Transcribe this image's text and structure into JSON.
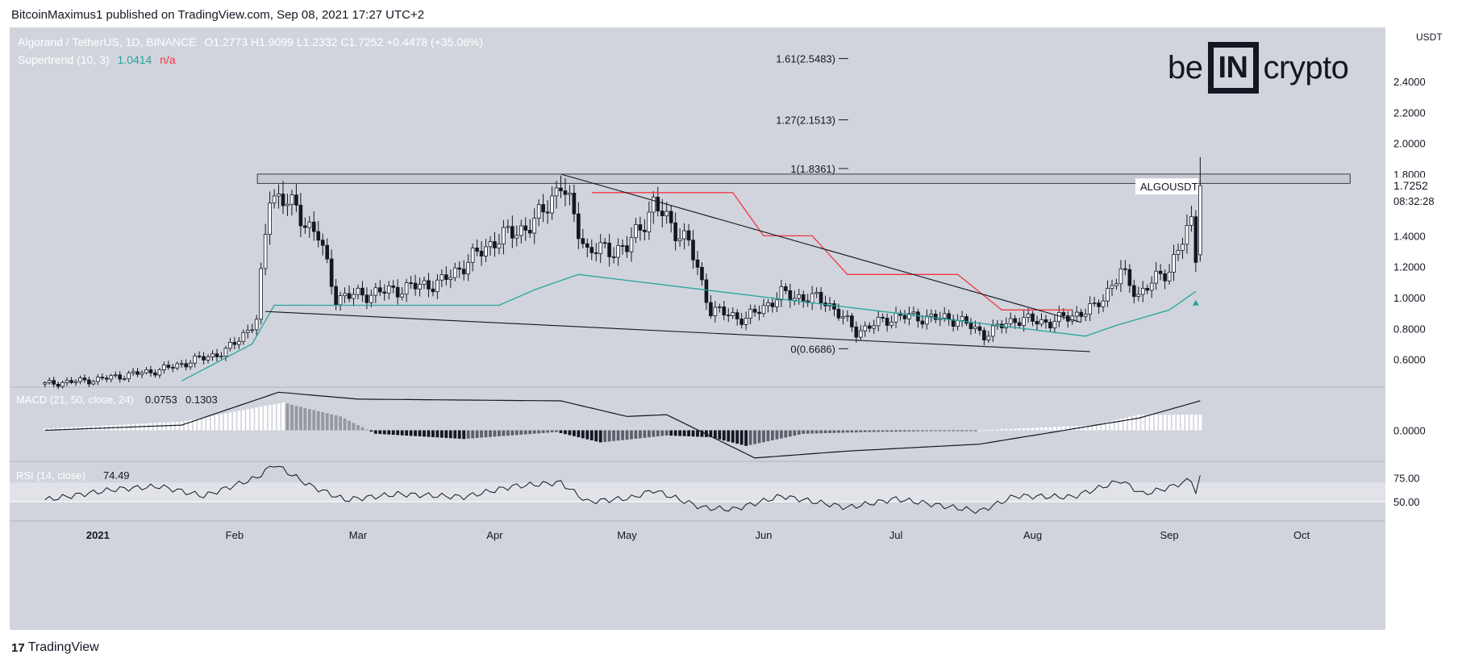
{
  "header": {
    "publisher": "BitcoinMaximus1 published on TradingView.com, Sep 08, 2021 17:27 UTC+2"
  },
  "brand": {
    "left": "be",
    "box": "IN",
    "right": "crypto"
  },
  "legend": {
    "symbol_line": "Algorand / TetherUS, 1D, BINANCE",
    "ohlc": "O1.2773 H1.9099 L1.2332 C1.7252 +0.4478 (+35.06%)",
    "supertrend_label": "Supertrend (10, 3)",
    "supertrend_value": "1.0414",
    "supertrend_na": "n/a"
  },
  "price_tag": {
    "ticker": "ALGOUSDT",
    "price": "1.7252",
    "countdown": "08:32:28"
  },
  "footer": {
    "brand": "TradingView"
  },
  "colors": {
    "bull": "#ffffff",
    "bear": "#131722",
    "supertrend_down": "#f23645",
    "supertrend_up": "#26a69a",
    "panel_bg": "#d1d4dc"
  },
  "chart_data": [
    {
      "type": "candlestick",
      "title": "Algorand / TetherUS, 1D, BINANCE",
      "ylim": [
        0.42,
        2.75
      ],
      "yticks": [
        "2.4000",
        "2.2000",
        "2.0000",
        "1.8000",
        "1.6000",
        "1.4000",
        "1.2000",
        "1.0000",
        "0.8000",
        "0.6000"
      ],
      "y_unit": "USDT",
      "xticks": [
        "2021",
        "Feb",
        "Mar",
        "Apr",
        "May",
        "Jun",
        "Jul",
        "Aug",
        "Sep",
        "Oct"
      ],
      "x_range": [
        "2020-12-12",
        "2021-10-20"
      ],
      "fib_levels": [
        {
          "label": "1.61(2.5483)",
          "value": 2.5483
        },
        {
          "label": "1.27(2.1513)",
          "value": 2.1513
        },
        {
          "label": "1(1.8361)",
          "value": 1.8361
        },
        {
          "label": "0(0.6686)",
          "value": 0.6686
        }
      ],
      "resistance_zone": [
        1.74,
        1.8
      ],
      "close_keypoints": [
        [
          "2020-12-20",
          0.44
        ],
        [
          "2021-01-01",
          0.47
        ],
        [
          "2021-01-15",
          0.53
        ],
        [
          "2021-01-30",
          0.65
        ],
        [
          "2021-02-06",
          0.85
        ],
        [
          "2021-02-09",
          1.68
        ],
        [
          "2021-02-13",
          1.62
        ],
        [
          "2021-02-20",
          1.4
        ],
        [
          "2021-02-24",
          1.0
        ],
        [
          "2021-03-05",
          1.03
        ],
        [
          "2021-03-20",
          1.1
        ],
        [
          "2021-04-01",
          1.37
        ],
        [
          "2021-04-10",
          1.48
        ],
        [
          "2021-04-16",
          1.74
        ],
        [
          "2021-04-22",
          1.3
        ],
        [
          "2021-05-01",
          1.32
        ],
        [
          "2021-05-07",
          1.6
        ],
        [
          "2021-05-15",
          1.35
        ],
        [
          "2021-05-20",
          0.92
        ],
        [
          "2021-05-28",
          0.86
        ],
        [
          "2021-06-05",
          1.02
        ],
        [
          "2021-06-15",
          0.98
        ],
        [
          "2021-06-22",
          0.78
        ],
        [
          "2021-07-01",
          0.88
        ],
        [
          "2021-07-15",
          0.86
        ],
        [
          "2021-07-21",
          0.76
        ],
        [
          "2021-07-28",
          0.86
        ],
        [
          "2021-08-05",
          0.84
        ],
        [
          "2021-08-15",
          0.93
        ],
        [
          "2021-08-21",
          1.16
        ],
        [
          "2021-08-25",
          1.02
        ],
        [
          "2021-09-01",
          1.19
        ],
        [
          "2021-09-06",
          1.48
        ],
        [
          "2021-09-07",
          1.2773
        ],
        [
          "2021-09-08",
          1.7252
        ]
      ],
      "last_candle": {
        "date": "2021-09-08",
        "open": 1.2773,
        "high": 1.9099,
        "low": 1.2332,
        "close": 1.7252
      },
      "supertrend_down": [
        [
          "2021-04-23",
          1.68
        ],
        [
          "2021-05-25",
          1.68
        ],
        [
          "2021-06-01",
          1.4
        ],
        [
          "2021-06-12",
          1.4
        ],
        [
          "2021-06-20",
          1.15
        ],
        [
          "2021-07-15",
          1.15
        ],
        [
          "2021-07-25",
          0.92
        ],
        [
          "2021-08-10",
          0.92
        ]
      ],
      "supertrend_up": [
        [
          "2021-01-20",
          0.46
        ],
        [
          "2021-02-05",
          0.7
        ],
        [
          "2021-02-10",
          0.95
        ],
        [
          "2021-04-02",
          0.95
        ],
        [
          "2021-04-10",
          1.05
        ],
        [
          "2021-04-15",
          1.1
        ],
        [
          "2021-04-20",
          1.15
        ],
        [
          "2021-08-13",
          0.75
        ],
        [
          "2021-08-20",
          0.82
        ],
        [
          "2021-09-01",
          0.92
        ],
        [
          "2021-09-07",
          1.04
        ]
      ],
      "trendlines": [
        {
          "from": [
            "2021-04-16",
            1.8
          ],
          "to": [
            "2021-08-12",
            0.84
          ]
        },
        {
          "from": [
            "2021-02-08",
            0.91
          ],
          "to": [
            "2021-08-14",
            0.65
          ]
        }
      ]
    },
    {
      "type": "macd",
      "label": "MACD (21, 50, close, 24)",
      "values_display": [
        "0.0753",
        "0.1303"
      ],
      "yticks": [
        "0.0000"
      ],
      "histogram_keypoints": [
        [
          "2020-12-20",
          0.01
        ],
        [
          "2021-01-20",
          0.05
        ],
        [
          "2021-02-12",
          0.16
        ],
        [
          "2021-02-25",
          0.08
        ],
        [
          "2021-03-05",
          -0.02
        ],
        [
          "2021-03-25",
          -0.05
        ],
        [
          "2021-04-15",
          -0.01
        ],
        [
          "2021-04-25",
          -0.07
        ],
        [
          "2021-05-10",
          -0.03
        ],
        [
          "2021-05-20",
          -0.04
        ],
        [
          "2021-05-28",
          -0.09
        ],
        [
          "2021-06-10",
          -0.02
        ],
        [
          "2021-06-25",
          -0.01
        ],
        [
          "2021-07-20",
          0.0
        ],
        [
          "2021-08-15",
          0.03
        ],
        [
          "2021-08-25",
          0.09
        ],
        [
          "2021-09-08",
          0.09
        ]
      ],
      "macd_line_keypoints": [
        [
          "2020-12-20",
          0.0
        ],
        [
          "2021-01-20",
          0.03
        ],
        [
          "2021-02-11",
          0.22
        ],
        [
          "2021-03-01",
          0.18
        ],
        [
          "2021-04-16",
          0.17
        ],
        [
          "2021-05-01",
          0.08
        ],
        [
          "2021-05-10",
          0.09
        ],
        [
          "2021-05-30",
          -0.16
        ],
        [
          "2021-06-20",
          -0.12
        ],
        [
          "2021-07-20",
          -0.08
        ],
        [
          "2021-08-25",
          0.07
        ],
        [
          "2021-09-08",
          0.17
        ]
      ]
    },
    {
      "type": "line",
      "label": "RSI (14, close)",
      "value_display": "74.49",
      "yticks": [
        "75.00",
        "50.00"
      ],
      "band": [
        50,
        70
      ],
      "keypoints": [
        [
          "2020-12-20",
          52
        ],
        [
          "2021-01-05",
          63
        ],
        [
          "2021-01-15",
          66
        ],
        [
          "2021-01-25",
          56
        ],
        [
          "2021-02-06",
          75
        ],
        [
          "2021-02-10",
          89
        ],
        [
          "2021-02-18",
          67
        ],
        [
          "2021-02-26",
          52
        ],
        [
          "2021-03-10",
          58
        ],
        [
          "2021-03-25",
          55
        ],
        [
          "2021-04-05",
          66
        ],
        [
          "2021-04-16",
          70
        ],
        [
          "2021-04-22",
          50
        ],
        [
          "2021-05-02",
          54
        ],
        [
          "2021-05-07",
          62
        ],
        [
          "2021-05-18",
          44
        ],
        [
          "2021-05-25",
          42
        ],
        [
          "2021-06-05",
          56
        ],
        [
          "2021-06-20",
          44
        ],
        [
          "2021-07-01",
          53
        ],
        [
          "2021-07-20",
          40
        ],
        [
          "2021-07-28",
          56
        ],
        [
          "2021-08-10",
          55
        ],
        [
          "2021-08-21",
          72
        ],
        [
          "2021-08-26",
          58
        ],
        [
          "2021-09-01",
          65
        ],
        [
          "2021-09-06",
          73
        ],
        [
          "2021-09-07",
          60
        ],
        [
          "2021-09-08",
          74.49
        ]
      ]
    }
  ]
}
